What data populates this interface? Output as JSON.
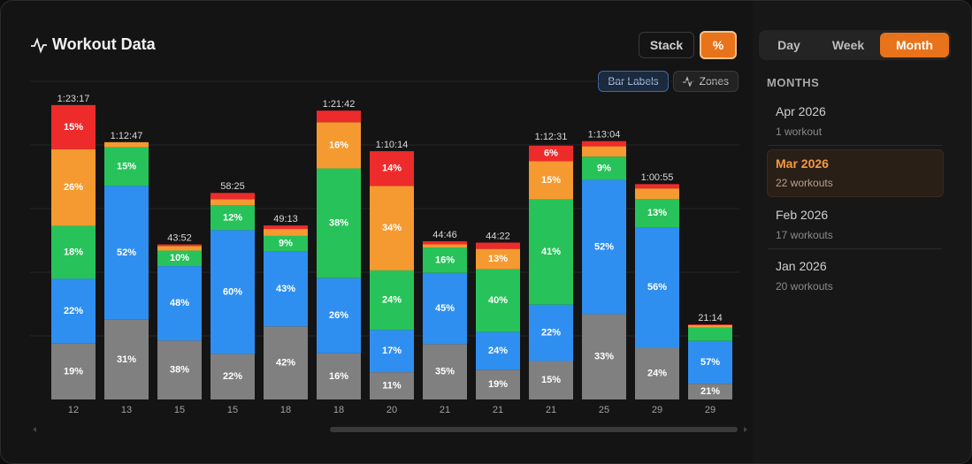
{
  "header": {
    "title": "Workout Data",
    "buttons": [
      "Stack",
      "%"
    ],
    "toggles": [
      "Bar Labels",
      "Zones"
    ]
  },
  "sidebar": {
    "periods": [
      "Day",
      "Week",
      "Month"
    ],
    "section": "MONTHS",
    "months": [
      {
        "label": "Apr 2026",
        "count": "1 workout"
      },
      {
        "label": "Mar 2026",
        "count": "22 workouts"
      },
      {
        "label": "Feb 2026",
        "count": "17 workouts"
      },
      {
        "label": "Jan 2026",
        "count": "20 workouts"
      }
    ]
  },
  "chart_data": {
    "type": "bar",
    "categories": [
      "12",
      "13",
      "15",
      "15",
      "18",
      "18",
      "20",
      "21",
      "21",
      "21",
      "25",
      "29",
      "29"
    ],
    "durations": [
      83.28,
      72.78,
      43.87,
      58.42,
      49.22,
      81.7,
      70.23,
      44.77,
      44.37,
      72.52,
      73.07,
      60.92,
      21.23
    ],
    "duration_labels": [
      "1:23:17",
      "1:12:47",
      "43:52",
      "58:25",
      "49:13",
      "1:21:42",
      "1:10:14",
      "44:46",
      "44:22",
      "1:12:31",
      "1:13:04",
      "1:00:55",
      "21:14"
    ],
    "ylim": [
      0,
      90
    ],
    "yticks": [
      18,
      36,
      54,
      72,
      90
    ],
    "grid": true,
    "series": [
      {
        "color": "#808080",
        "values": [
          19,
          31,
          38,
          22,
          42,
          16,
          11,
          35,
          19,
          15,
          33,
          24,
          21
        ],
        "value_labels": [
          "19%",
          "31%",
          "38%",
          "22%",
          "42%",
          "16%",
          "11%",
          "35%",
          "19%",
          "15%",
          "33%",
          "24%",
          "21%"
        ]
      },
      {
        "color": "#2f8ff0",
        "values": [
          22,
          52,
          48,
          60,
          43,
          26,
          17,
          45,
          24,
          22,
          52,
          56,
          57
        ],
        "value_labels": [
          "22%",
          "52%",
          "48%",
          "60%",
          "43%",
          "26%",
          "17%",
          "45%",
          "24%",
          "22%",
          "52%",
          "56%",
          "57%"
        ]
      },
      {
        "color": "#28c25a",
        "values": [
          18,
          15,
          10,
          12,
          9,
          38,
          24,
          16,
          40,
          41,
          9,
          13,
          18
        ],
        "value_labels": [
          "18%",
          "15%",
          "10%",
          "12%",
          "9%",
          "38%",
          "24%",
          "16%",
          "40%",
          "41%",
          "9%",
          "13%",
          null
        ]
      },
      {
        "color": "#f59a30",
        "values": [
          26,
          2,
          3,
          3,
          4,
          16,
          34,
          2,
          13,
          15,
          4,
          5,
          3
        ],
        "value_labels": [
          "26%",
          null,
          null,
          null,
          null,
          "16%",
          "34%",
          null,
          "13%",
          "15%",
          null,
          null,
          null
        ]
      },
      {
        "color": "#ee2b2b",
        "values": [
          15,
          0,
          1,
          3,
          2,
          4,
          14,
          2,
          4,
          6,
          2,
          2,
          1
        ],
        "value_labels": [
          "15%",
          null,
          null,
          null,
          null,
          null,
          "14%",
          null,
          null,
          "6%",
          null,
          null,
          null
        ]
      }
    ]
  }
}
